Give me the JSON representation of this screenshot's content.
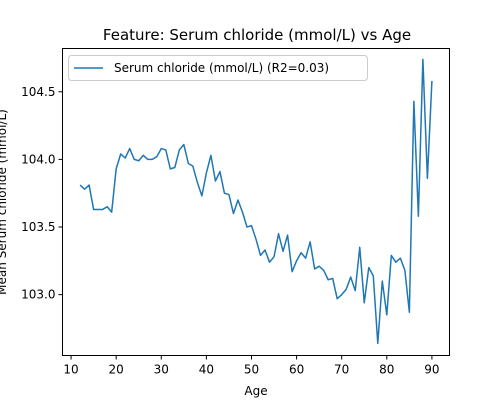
{
  "chart_data": {
    "type": "line",
    "title": "Feature: Serum chloride (mmol/L) vs Age",
    "xlabel": "Age",
    "ylabel": "Mean Serum chloride (mmol/L)",
    "xlim": [
      8.1,
      93.9
    ],
    "ylim": [
      102.55,
      104.82
    ],
    "xticks": [
      10,
      20,
      30,
      40,
      50,
      60,
      70,
      80,
      90
    ],
    "yticks": [
      103.0,
      103.5,
      104.0,
      104.5
    ],
    "ytick_labels": [
      "103.0",
      "103.5",
      "104.0",
      "104.5"
    ],
    "grid": false,
    "legend_position": "top-left",
    "series": [
      {
        "name": "Serum chloride (mmol/L) (R2=0.03)",
        "color": "#1f77b4",
        "x": [
          12,
          13,
          14,
          15,
          16,
          17,
          18,
          19,
          20,
          21,
          22,
          23,
          24,
          25,
          26,
          27,
          28,
          29,
          30,
          31,
          32,
          33,
          34,
          35,
          36,
          37,
          38,
          39,
          40,
          41,
          42,
          43,
          44,
          45,
          46,
          47,
          48,
          49,
          50,
          51,
          52,
          53,
          54,
          55,
          56,
          57,
          58,
          59,
          60,
          61,
          62,
          63,
          64,
          65,
          66,
          67,
          68,
          69,
          70,
          71,
          72,
          73,
          74,
          75,
          76,
          77,
          78,
          79,
          80,
          81,
          82,
          83,
          84,
          85,
          86,
          87,
          88,
          89,
          90
        ],
        "y": [
          103.81,
          103.78,
          103.81,
          103.63,
          103.63,
          103.63,
          103.65,
          103.61,
          103.93,
          104.04,
          104.01,
          104.08,
          104.0,
          103.99,
          104.03,
          104.0,
          104.0,
          104.02,
          104.08,
          104.07,
          103.93,
          103.94,
          104.07,
          104.11,
          103.97,
          103.95,
          103.83,
          103.73,
          103.9,
          104.03,
          103.84,
          103.91,
          103.75,
          103.74,
          103.6,
          103.7,
          103.61,
          103.5,
          103.51,
          103.41,
          103.29,
          103.33,
          103.24,
          103.28,
          103.45,
          103.32,
          103.44,
          103.17,
          103.25,
          103.31,
          103.27,
          103.39,
          103.19,
          103.21,
          103.18,
          103.11,
          103.12,
          102.97,
          103.0,
          103.04,
          103.13,
          103.03,
          103.35,
          102.94,
          103.2,
          103.14,
          102.64,
          103.1,
          102.85,
          103.29,
          103.24,
          103.27,
          103.18,
          102.87,
          104.43,
          103.58,
          104.74,
          103.86,
          104.58
        ]
      }
    ]
  }
}
